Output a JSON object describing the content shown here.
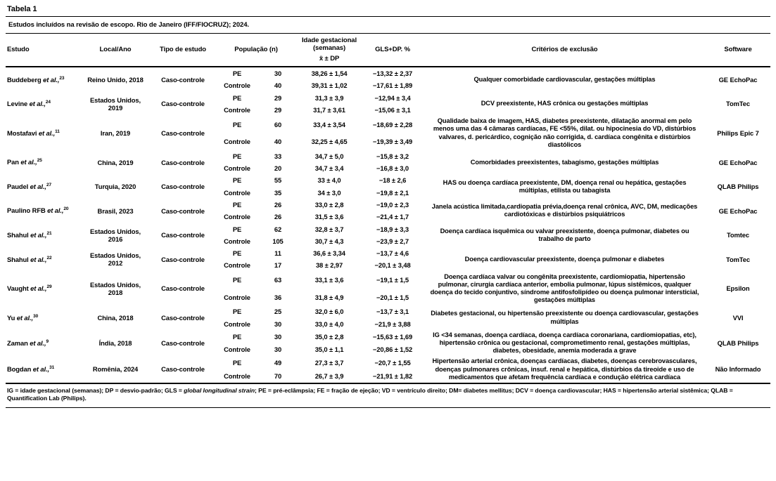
{
  "page": {
    "title": "Tabela 1",
    "caption": "Estudos incluídos na revisão de escopo. Rio de Janeiro (IFF/FIOCRUZ); 2024."
  },
  "header": {
    "estudo": "Estudo",
    "local": "Local/Ano",
    "tipo": "Tipo de estudo",
    "populacao": "População (n)",
    "idade_title": "Idade gestacional\n(semanas)",
    "idade_xdp": "x̄  ± DP",
    "gls": "GLS+DP. %",
    "criterios": "Critérios de exclusão",
    "software": "Software"
  },
  "etal": "et al.,",
  "rows": [
    {
      "estudo": "Buddeberg ",
      "ref": "23",
      "local": "Reino Unido, 2018",
      "tipo": "Caso-controle",
      "grupos": [
        {
          "grupo": "PE",
          "n": "30",
          "idade": "38,26 ± 1,54",
          "gls": "−13,32 ± 2,37"
        },
        {
          "grupo": "Controle",
          "n": "40",
          "idade": "39,31 ± 1,02",
          "gls": "−17,61 ± 1,89"
        }
      ],
      "criterios": "Qualquer comorbidade cardiovascular, gestações múltiplas",
      "software": "GE EchoPac"
    },
    {
      "estudo": "Levine ",
      "ref": "24",
      "local": "Estados Unidos, 2019",
      "tipo": "Caso-controle",
      "grupos": [
        {
          "grupo": "PE",
          "n": "29",
          "idade": "31,3 ± 3,9",
          "gls": "−12,94 ± 3,4"
        },
        {
          "grupo": "Controle",
          "n": "29",
          "idade": "31,7 ± 3,61",
          "gls": "−15,06 ± 3,1"
        }
      ],
      "criterios": "DCV preexistente, HAS crônica ou gestações múltiplas",
      "software": "TomTec"
    },
    {
      "estudo": "Mostafavi ",
      "ref": "11",
      "local": "Iran, 2019",
      "tipo": "Caso-controle",
      "grupos": [
        {
          "grupo": "PE",
          "n": "60",
          "idade": "33,4 ± 3,54",
          "gls": "−18,69 ± 2,28"
        },
        {
          "grupo": "Controle",
          "n": "40",
          "idade": "32,25 ± 4,65",
          "gls": "−19,39 ± 3,49"
        }
      ],
      "criterios": "Qualidade baixa de imagem, HAS, diabetes preexistente, dilatação anormal em pelo menos uma das 4 câmaras cardíacas, FE <55%, dilat. ou hipocinesia do VD, distúrbios valvares, d. pericárdico, cognição não corrigida, d. cardíaca congênita e distúrbios diastólicos",
      "software": "Philips Epic 7"
    },
    {
      "estudo": "Pan ",
      "ref": "25",
      "local": "China, 2019",
      "tipo": "Caso-controle",
      "grupos": [
        {
          "grupo": "PE",
          "n": "33",
          "idade": "34,7 ± 5,0",
          "gls": "−15,8 ± 3,2"
        },
        {
          "grupo": "Controle",
          "n": "20",
          "idade": "34,7 ± 3,4",
          "gls": "−16,8 ± 3,0"
        }
      ],
      "criterios": "Comorbidades preexistentes, tabagismo, gestações múltiplas",
      "software": "GE EchoPac"
    },
    {
      "estudo": "Paudel ",
      "ref": "27",
      "local": "Turquia, 2020",
      "tipo": "Caso-controle",
      "grupos": [
        {
          "grupo": "PE",
          "n": "55",
          "idade": "33 ± 4,0",
          "gls": "−18 ± 2,6"
        },
        {
          "grupo": "Controle",
          "n": "35",
          "idade": "34 ± 3,0",
          "gls": "−19,8 ± 2,1"
        }
      ],
      "criterios": "HAS ou doença cardíaca preexistente, DM, doença renal ou hepática, gestações múltiplas, etilista ou tabagista",
      "software": "QLAB Philips"
    },
    {
      "estudo": "Paulino RFB ",
      "ref": "20",
      "local": "Brasil, 2023",
      "tipo": "Caso-controle",
      "grupos": [
        {
          "grupo": "PE",
          "n": "26",
          "idade": "33,0 ± 2,8",
          "gls": "−19,0 ± 2,3"
        },
        {
          "grupo": "Controle",
          "n": "26",
          "idade": "31,5 ± 3,6",
          "gls": "−21,4 ± 1,7"
        }
      ],
      "criterios": "Janela acústica limitada,cardiopatia prévia,doença renal crônica, AVC, DM, medicações cardiotóxicas e distúrbios psiquiátricos",
      "software": "GE EchoPac"
    },
    {
      "estudo": "Shahul ",
      "ref": "21",
      "local": "Estados Unidos, 2016",
      "tipo": "Caso-controle",
      "grupos": [
        {
          "grupo": "PE",
          "n": "62",
          "idade": "32,8 ± 3,7",
          "gls": "−18,9 ± 3,3"
        },
        {
          "grupo": "Controle",
          "n": "105",
          "idade": "30,7 ± 4,3",
          "gls": "−23,9 ± 2,7"
        }
      ],
      "criterios": "Doença cardíaca isquêmica ou valvar preexistente, doença pulmonar, diabetes ou trabalho de parto",
      "software": "Tomtec"
    },
    {
      "estudo": "Shahul ",
      "ref": "22",
      "local": "Estados Unidos, 2012",
      "tipo": "Caso-controle",
      "grupos": [
        {
          "grupo": "PE",
          "n": "11",
          "idade": "36,6 ± 3,34",
          "gls": "−13,7 ± 4,6"
        },
        {
          "grupo": "Controle",
          "n": "17",
          "idade": "38 ± 2,97",
          "gls": "−20,1 ± 3,48"
        }
      ],
      "criterios": "Doença cardiovascular preexistente, doença pulmonar e diabetes",
      "software": "TomTec"
    },
    {
      "estudo": "Vaught ",
      "ref": "29",
      "local": "Estados Unidos, 2018",
      "tipo": "Caso-controle",
      "grupos": [
        {
          "grupo": "PE",
          "n": "63",
          "idade": "33,1 ± 3,6",
          "gls": "−19,1 ± 1,5"
        },
        {
          "grupo": "Controle",
          "n": "36",
          "idade": "31,8 ± 4,9",
          "gls": "−20,1 ± 1,5"
        }
      ],
      "criterios": "Doença cardíaca valvar ou congênita preexistente, cardiomiopatia, hipertensão pulmonar, cirurgia cardíaca anterior, embolia pulmonar, lúpus sistêmicos, qualquer doença do tecido conjuntivo, síndrome antifosfolipídeo ou doença pulmonar intersticial, gestações múltiplas",
      "software": "Epsilon"
    },
    {
      "estudo": "Yu ",
      "ref": "30",
      "local": "China, 2018",
      "tipo": "Caso-controle",
      "grupos": [
        {
          "grupo": "PE",
          "n": "25",
          "idade": "32,0 ± 6,0",
          "gls": "−13,7 ± 3,1"
        },
        {
          "grupo": "Controle",
          "n": "30",
          "idade": "33,0 ± 4,0",
          "gls": "−21,9 ± 3,88"
        }
      ],
      "criterios": "Diabetes gestacional, ou hipertensão preexistente ou doença cardiovascular, gestações múltiplas",
      "software": "VVI"
    },
    {
      "estudo": "Zaman ",
      "ref": "9",
      "local": "Índia, 2018",
      "tipo": "Caso-controle",
      "grupos": [
        {
          "grupo": "PE",
          "n": "30",
          "idade": "35,0 ± 2,8",
          "gls": "−15,63 ± 1,69"
        },
        {
          "grupo": "Controle",
          "n": "30",
          "idade": "35,0 ± 1,1",
          "gls": "−20,86 ± 1,52"
        }
      ],
      "criterios": "IG <34 semanas, doença cardíaca, doença cardíaca coronariana, cardiomiopatias, etc), hipertensão crônica ou gestacional, comprometimento renal, gestações múltiplas, diabetes, obesidade, anemia moderada a grave",
      "software": "QLAB Philips"
    },
    {
      "estudo": "Bogdan ",
      "ref": "31",
      "local": "Romênia, 2024",
      "tipo": "Caso-controle",
      "grupos": [
        {
          "grupo": "PE",
          "n": "49",
          "idade": "27,3 ± 3,7",
          "gls": "−20,7 ± 1,55"
        },
        {
          "grupo": "Controle",
          "n": "70",
          "idade": "26,7 ± 3,9",
          "gls": "−21,91 ± 1,82"
        }
      ],
      "criterios": "Hipertensão arterial crônica, doenças cardíacas, diabetes, doenças cerebrovasculares, doenças pulmonares crônicas, insuf. renal e hepática, distúrbios da tireoide e uso de medicamentos que afetam frequência cardíaca e condução elétrica cardíaca",
      "software": "Não Informado"
    }
  ],
  "footnote": {
    "part1": "IG = idade gestacional (semanas); DP = desvio-padrão; GLS = ",
    "italic": "global longitudinal strain",
    "part2": "; PE = pré-eclâmpsia; FE = fração de ejeção; VD = ventrículo direito; DM= diabetes mellitus; DCV = doença cardiovascular; HAS = hipertensão arterial sistêmica; QLAB = Quantification Lab (Philips)."
  }
}
